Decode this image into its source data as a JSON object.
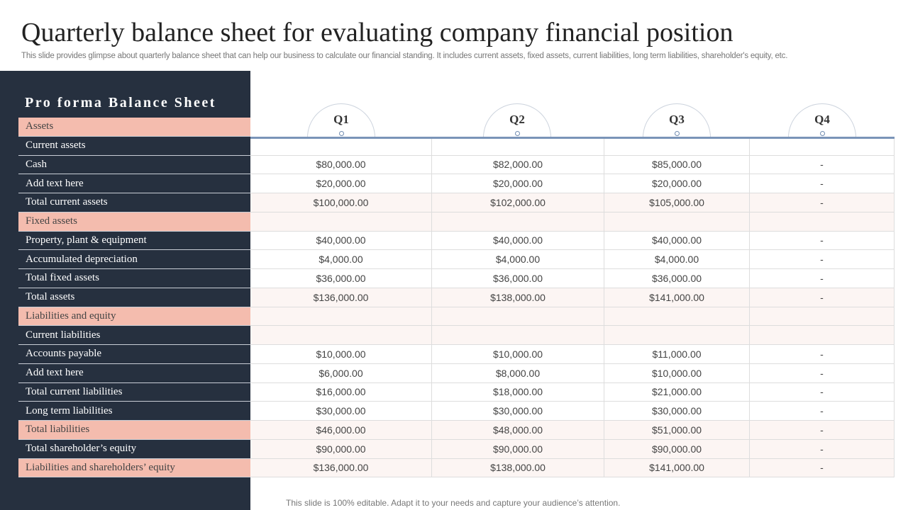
{
  "header": {
    "title": "Quarterly balance sheet for evaluating company financial position",
    "subtitle": "This slide provides glimpse about quarterly balance sheet that can help our business to calculate our financial standing. It includes current assets, fixed assets, current liabilities, long term liabilities, shareholder's equity, etc."
  },
  "table": {
    "title": "Pro forma Balance Sheet",
    "columns": [
      "Q1",
      "Q2",
      "Q3",
      "Q4"
    ],
    "rows": [
      {
        "label": "Assets",
        "kind": "section",
        "shaded": false,
        "cells": []
      },
      {
        "label": "Current assets",
        "kind": "item",
        "shaded": false,
        "cells": []
      },
      {
        "label": "Cash",
        "kind": "item",
        "shaded": false,
        "cells": [
          "$80,000.00",
          "$82,000.00",
          "$85,000.00",
          "-"
        ]
      },
      {
        "label": "Add text here",
        "kind": "item",
        "shaded": false,
        "cells": [
          "$20,000.00",
          "$20,000.00",
          "$20,000.00",
          "-"
        ]
      },
      {
        "label": "Total current assets",
        "kind": "item",
        "shaded": true,
        "cells": [
          "$100,000.00",
          "$102,000.00",
          "$105,000.00",
          "-"
        ]
      },
      {
        "label": "Fixed assets",
        "kind": "section",
        "shaded": true,
        "cells": []
      },
      {
        "label": "Property, plant & equipment",
        "kind": "item",
        "shaded": false,
        "cells": [
          "$40,000.00",
          "$40,000.00",
          "$40,000.00",
          "-"
        ]
      },
      {
        "label": "Accumulated depreciation",
        "kind": "item",
        "shaded": false,
        "cells": [
          "$4,000.00",
          "$4,000.00",
          "$4,000.00",
          "-"
        ]
      },
      {
        "label": "Total fixed assets",
        "kind": "item",
        "shaded": false,
        "cells": [
          "$36,000.00",
          "$36,000.00",
          "$36,000.00",
          "-"
        ]
      },
      {
        "label": "Total assets",
        "kind": "item",
        "shaded": true,
        "cells": [
          "$136,000.00",
          "$138,000.00",
          "$141,000.00",
          "-"
        ]
      },
      {
        "label": "Liabilities and equity",
        "kind": "section",
        "shaded": true,
        "cells": []
      },
      {
        "label": "Current liabilities",
        "kind": "item",
        "shaded": true,
        "cells": []
      },
      {
        "label": "Accounts payable",
        "kind": "item",
        "shaded": false,
        "cells": [
          "$10,000.00",
          "$10,000.00",
          "$11,000.00",
          "-"
        ]
      },
      {
        "label": "Add text here",
        "kind": "item",
        "shaded": false,
        "cells": [
          "$6,000.00",
          "$8,000.00",
          "$10,000.00",
          "-"
        ]
      },
      {
        "label": "Total current liabilities",
        "kind": "item",
        "shaded": false,
        "cells": [
          "$16,000.00",
          "$18,000.00",
          "$21,000.00",
          "-"
        ]
      },
      {
        "label": "Long term liabilities",
        "kind": "item",
        "shaded": false,
        "cells": [
          "$30,000.00",
          "$30,000.00",
          "$30,000.00",
          "-"
        ]
      },
      {
        "label": "Total liabilities",
        "kind": "section",
        "shaded": true,
        "cells": [
          "$46,000.00",
          "$48,000.00",
          "$51,000.00",
          "-"
        ]
      },
      {
        "label": "Total shareholder’s equity",
        "kind": "item",
        "shaded": true,
        "cells": [
          "$90,000.00",
          "$90,000.00",
          "$90,000.00",
          "-"
        ]
      },
      {
        "label": "Liabilities and shareholders’ equity",
        "kind": "section",
        "shaded": true,
        "cells": [
          "$136,000.00",
          "$138,000.00",
          "$141,000.00",
          "-"
        ]
      }
    ]
  },
  "footer": {
    "note": "This slide is 100% editable. Adapt it to your needs and capture your audience’s attention."
  }
}
